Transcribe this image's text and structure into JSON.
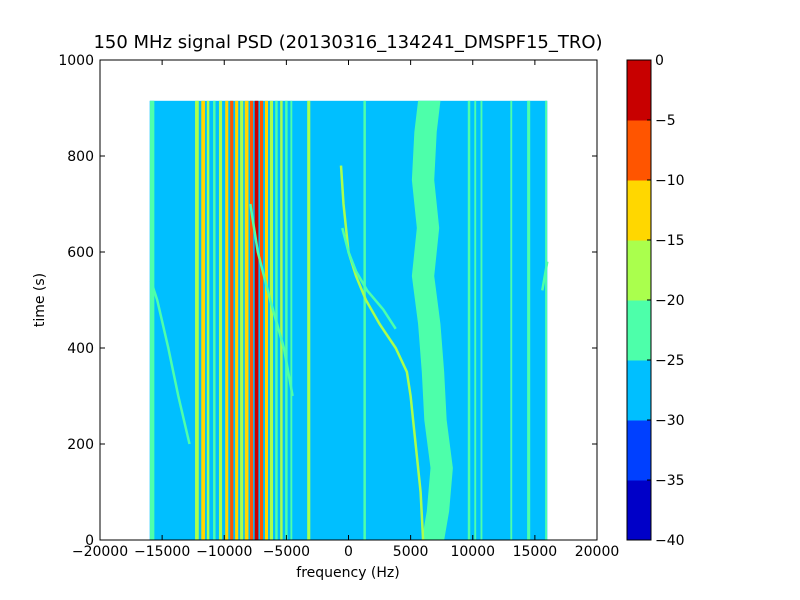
{
  "chart_data": {
    "type": "heatmap",
    "title": "150 MHz signal PSD (20130316_134241_DMSPF15_TRO)",
    "xlabel": "frequency (Hz)",
    "ylabel": "time (s)",
    "xlim": [
      -20000,
      20000
    ],
    "ylim": [
      0,
      1000
    ],
    "x_ticks": [
      -20000,
      -15000,
      -10000,
      -5000,
      0,
      5000,
      10000,
      15000,
      20000
    ],
    "y_ticks": [
      0,
      200,
      400,
      600,
      800,
      1000
    ],
    "data_extent": {
      "x": [
        -16000,
        16000
      ],
      "y": [
        0,
        915
      ]
    },
    "background_level": -27.5,
    "colorbar": {
      "levels": [
        -40,
        -35,
        -30,
        -25,
        -20,
        -15,
        -10,
        -5,
        0
      ],
      "colors": [
        "#0000c8",
        "#0040ff",
        "#00bfff",
        "#4dffaa",
        "#aaff4d",
        "#ffd700",
        "#ff5500",
        "#c80000"
      ]
    },
    "constant_lines": [
      {
        "f": -15800,
        "width": 350,
        "level": -22.5
      },
      {
        "f": -12200,
        "width": 300,
        "level": -17.5
      },
      {
        "f": -11700,
        "width": 300,
        "level": -12.5
      },
      {
        "f": -11300,
        "width": 200,
        "level": -17.5
      },
      {
        "f": -10800,
        "width": 200,
        "level": -22.5
      },
      {
        "f": -10300,
        "width": 250,
        "level": -17.5
      },
      {
        "f": -9800,
        "width": 250,
        "level": -12.5
      },
      {
        "f": -9400,
        "width": 250,
        "level": -7.5
      },
      {
        "f": -9000,
        "width": 250,
        "level": -12.5
      },
      {
        "f": -8600,
        "width": 250,
        "level": -17.5
      },
      {
        "f": -8200,
        "width": 300,
        "level": -12.5
      },
      {
        "f": -7800,
        "width": 250,
        "level": -7.5
      },
      {
        "f": -7400,
        "width": 300,
        "level": -2.5
      },
      {
        "f": -7000,
        "width": 250,
        "level": -7.5
      },
      {
        "f": -6600,
        "width": 250,
        "level": -12.5
      },
      {
        "f": -6200,
        "width": 250,
        "level": -17.5
      },
      {
        "f": -5800,
        "width": 200,
        "level": -22.5
      },
      {
        "f": -5400,
        "width": 200,
        "level": -17.5
      },
      {
        "f": -5000,
        "width": 200,
        "level": -22.5
      },
      {
        "f": -4600,
        "width": 150,
        "level": -22.5
      },
      {
        "f": -3200,
        "width": 250,
        "level": -17.5
      },
      {
        "f": 1300,
        "width": 200,
        "level": -22.5
      },
      {
        "f": 9700,
        "width": 200,
        "level": -22.5
      },
      {
        "f": 10200,
        "width": 150,
        "level": -22.5
      },
      {
        "f": 10700,
        "width": 150,
        "level": -22.5
      },
      {
        "f": 13100,
        "width": 150,
        "level": -22.5
      },
      {
        "f": 14500,
        "width": 250,
        "level": -22.5
      },
      {
        "f": 15900,
        "width": 150,
        "level": -22.5
      }
    ],
    "noise_band": [
      {
        "t": 0,
        "f": 6800
      },
      {
        "t": 60,
        "f": 7200
      },
      {
        "t": 150,
        "f": 7500
      },
      {
        "t": 250,
        "f": 7000
      },
      {
        "t": 350,
        "f": 6800
      },
      {
        "t": 450,
        "f": 6500
      },
      {
        "t": 550,
        "f": 6000
      },
      {
        "t": 650,
        "f": 6400
      },
      {
        "t": 750,
        "f": 6000
      },
      {
        "t": 850,
        "f": 6200
      },
      {
        "t": 915,
        "f": 6500
      }
    ],
    "noise_band_halfwidth": 900,
    "noise_band_level": -22.5,
    "doppler_tracks": [
      {
        "level": -17.5,
        "points": [
          {
            "t": 0,
            "f": 6000
          },
          {
            "t": 100,
            "f": 5800
          },
          {
            "t": 200,
            "f": 5400
          },
          {
            "t": 300,
            "f": 5000
          },
          {
            "t": 350,
            "f": 4700
          },
          {
            "t": 400,
            "f": 3800
          },
          {
            "t": 450,
            "f": 2500
          },
          {
            "t": 500,
            "f": 1400
          },
          {
            "t": 550,
            "f": 600
          },
          {
            "t": 600,
            "f": 0
          },
          {
            "t": 700,
            "f": -400
          },
          {
            "t": 780,
            "f": -600
          }
        ]
      },
      {
        "level": -22.5,
        "points": [
          {
            "t": 440,
            "f": 3800
          },
          {
            "t": 480,
            "f": 2800
          },
          {
            "t": 520,
            "f": 1500
          },
          {
            "t": 560,
            "f": 600
          },
          {
            "t": 600,
            "f": 0
          },
          {
            "t": 650,
            "f": -500
          }
        ]
      },
      {
        "level": -22.5,
        "points": [
          {
            "t": 200,
            "f": -12800
          },
          {
            "t": 300,
            "f": -13700
          },
          {
            "t": 400,
            "f": -14500
          },
          {
            "t": 500,
            "f": -15400
          },
          {
            "t": 540,
            "f": -15900
          }
        ]
      },
      {
        "level": -22.5,
        "points": [
          {
            "t": 300,
            "f": -4500
          },
          {
            "t": 400,
            "f": -5200
          },
          {
            "t": 500,
            "f": -6300
          },
          {
            "t": 600,
            "f": -7300
          },
          {
            "t": 700,
            "f": -7900
          }
        ]
      },
      {
        "level": -22.5,
        "points": [
          {
            "t": 520,
            "f": 15600
          },
          {
            "t": 580,
            "f": 16000
          }
        ]
      }
    ]
  }
}
